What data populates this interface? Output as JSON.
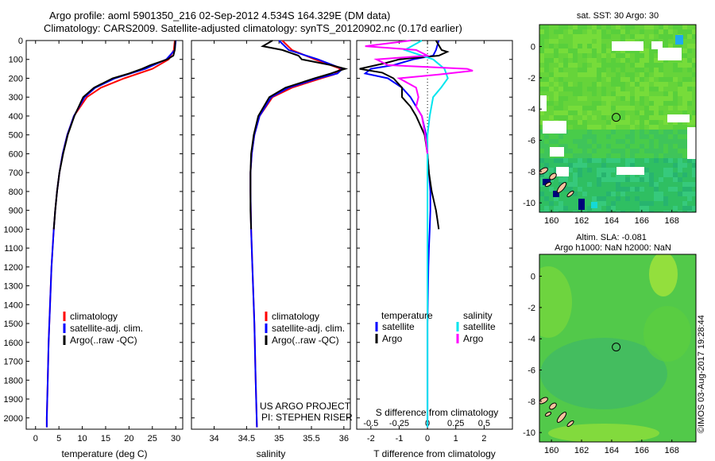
{
  "header": {
    "line1": "Argo profile: aoml 5901350_216 02-Sep-2012 4.534S 164.329E (DM data)",
    "line2": "Climatology: CARS2009. Satellite-adjusted climatology: synTS_20120902.nc (0.17d earlier)"
  },
  "colors": {
    "clim": "#ff0000",
    "sat": "#0000ff",
    "argo": "#000000",
    "sal_sat": "#00e5ee",
    "sal_argo": "#ff00ff"
  },
  "chart_data": [
    {
      "id": "temperature",
      "type": "line",
      "xlabel": "temperature (deg C)",
      "ylabel": "",
      "xlim": [
        -2,
        31.5
      ],
      "ylim": [
        2060,
        0
      ],
      "xticks": [
        0,
        5,
        10,
        15,
        20,
        25,
        30
      ],
      "yticks": [
        0,
        100,
        200,
        300,
        400,
        500,
        600,
        700,
        800,
        900,
        1000,
        1100,
        1200,
        1300,
        1400,
        1500,
        1600,
        1700,
        1800,
        1900,
        2000
      ],
      "legend": [
        "climatology",
        "satellite-adj. clim.",
        "Argo(..raw -QC)"
      ],
      "series": [
        {
          "name": "climatology",
          "color": "clim",
          "depth": [
            0,
            50,
            100,
            150,
            200,
            250,
            300,
            400,
            500,
            600,
            700,
            800,
            900,
            1000,
            1200,
            1400,
            1600,
            1800,
            2000,
            2050
          ],
          "values": [
            29.8,
            29.6,
            28.5,
            25,
            19,
            14,
            11,
            8.2,
            6.8,
            5.8,
            5.1,
            4.6,
            4.2,
            3.9,
            3.4,
            3.1,
            2.8,
            2.6,
            2.4,
            2.4
          ]
        },
        {
          "name": "satellite-adj. clim.",
          "color": "sat",
          "depth": [
            0,
            50,
            100,
            150,
            200,
            250,
            300,
            400,
            500,
            600,
            700,
            800,
            900,
            1000,
            1200,
            1400,
            1600,
            1800,
            2000,
            2050
          ],
          "values": [
            30,
            29.8,
            28,
            23.5,
            17,
            12.8,
            10.5,
            8.2,
            6.8,
            5.8,
            5.1,
            4.6,
            4.2,
            3.9,
            3.4,
            3.1,
            2.8,
            2.6,
            2.4,
            2.4
          ]
        },
        {
          "name": "Argo(..raw -QC)",
          "color": "argo",
          "depth": [
            0,
            50,
            80,
            100,
            130,
            150,
            175,
            200,
            250,
            300,
            400,
            500,
            600,
            700,
            800,
            900,
            1000
          ],
          "values": [
            29.9,
            29.8,
            29.5,
            28.2,
            24.6,
            22.8,
            20,
            16.5,
            12.5,
            10.2,
            8.3,
            6.9,
            5.9,
            5.1,
            4.6,
            4.2,
            3.9
          ]
        }
      ]
    },
    {
      "id": "salinity",
      "type": "line",
      "xlabel": "salinity",
      "ylabel": "",
      "xlim": [
        33.65,
        36.1
      ],
      "ylim": [
        2060,
        0
      ],
      "xticks": [
        34,
        34.5,
        35,
        35.5,
        36
      ],
      "xticklabels": [
        "34",
        "34.5",
        "35",
        "35.5",
        "36"
      ],
      "legend": [
        "climatology",
        "satellite-adj. clim.",
        "Argo(..raw -QC)"
      ],
      "credit1": "US ARGO PROJECT",
      "credit2": "PI: STEPHEN RISER",
      "series": [
        {
          "name": "climatology",
          "color": "clim",
          "depth": [
            0,
            50,
            100,
            150,
            180,
            200,
            250,
            300,
            400,
            500,
            600,
            700,
            800,
            1000,
            1200,
            1500,
            1800,
            2050
          ],
          "values": [
            35.05,
            35.2,
            35.55,
            35.95,
            35.85,
            35.65,
            35.2,
            34.9,
            34.7,
            34.62,
            34.58,
            34.56,
            34.56,
            34.57,
            34.59,
            34.62,
            34.64,
            34.66
          ]
        },
        {
          "name": "satellite-adj. clim.",
          "color": "sat",
          "depth": [
            0,
            50,
            100,
            150,
            175,
            200,
            250,
            300,
            400,
            500,
            600,
            700,
            800,
            1000,
            1200,
            1500,
            1800,
            2050
          ],
          "values": [
            35.0,
            35.15,
            35.6,
            35.98,
            35.9,
            35.6,
            35.15,
            34.88,
            34.7,
            34.62,
            34.58,
            34.56,
            34.56,
            34.57,
            34.59,
            34.62,
            34.64,
            34.66
          ]
        },
        {
          "name": "Argo(..raw -QC)",
          "color": "argo",
          "depth": [
            0,
            30,
            50,
            80,
            100,
            130,
            150,
            160,
            175,
            200,
            250,
            300,
            400,
            500,
            600,
            700,
            800,
            900,
            1000
          ],
          "values": [
            34.9,
            34.75,
            35.05,
            35.3,
            35.35,
            35.8,
            36.02,
            35.92,
            35.8,
            35.55,
            35.1,
            34.85,
            34.68,
            34.61,
            34.57,
            34.56,
            34.56,
            34.56,
            34.57
          ]
        }
      ]
    },
    {
      "id": "difference",
      "type": "line",
      "xlabel": "T difference from climatology",
      "xlabel_top": "S difference from climatology",
      "xlim": [
        -2.5,
        3.0
      ],
      "ylim": [
        2060,
        0
      ],
      "xticks": [
        -2,
        -1,
        0,
        1,
        2
      ],
      "xticklabels": [
        "-2",
        "-1",
        "0",
        "1",
        "2"
      ],
      "sticks": [
        -0.5,
        -0.25,
        0,
        0.25,
        0.5
      ],
      "sticklabels": [
        "-0.5",
        "-0.25",
        "0",
        "0.25",
        "0.5"
      ],
      "legend_t_title": "temperature",
      "legend_s_title": "salinity",
      "legend": [
        "satellite",
        "Argo",
        "satellite",
        "Argo"
      ],
      "series": [
        {
          "name": "T satellite",
          "color": "sat",
          "depth": [
            0,
            50,
            80,
            100,
            130,
            150,
            175,
            200,
            250,
            300,
            400,
            500,
            600,
            700,
            800,
            900,
            1000,
            1100,
            1200,
            1500,
            2050
          ],
          "values": [
            0.4,
            0.3,
            0.2,
            -0.5,
            -1.2,
            -2.0,
            -2.2,
            -1.4,
            -0.9,
            -0.6,
            -0.2,
            -0.05,
            0.0,
            0.05,
            0.1,
            0.1,
            0.08,
            0.05,
            0.03,
            0.0,
            0.0
          ]
        },
        {
          "name": "T Argo",
          "color": "argo",
          "depth": [
            0,
            50,
            60,
            80,
            100,
            120,
            150,
            170,
            200,
            250,
            300,
            350,
            400,
            500,
            600,
            700,
            800,
            900,
            950,
            1000
          ],
          "values": [
            0.3,
            0.5,
            0.7,
            0.4,
            -1.0,
            -1.5,
            -2.4,
            -1.6,
            -1.2,
            -0.9,
            -0.9,
            -0.6,
            -0.4,
            -0.1,
            0.0,
            0.05,
            0.15,
            0.3,
            0.35,
            0.4
          ]
        },
        {
          "name": "S satellite",
          "color": "sal_sat",
          "depth": [
            0,
            50,
            100,
            150,
            200,
            250,
            300,
            400,
            500,
            600,
            800,
            1000,
            1500,
            2050
          ],
          "values": [
            -0.05,
            -0.2,
            0.05,
            0.15,
            0.18,
            0.12,
            0.05,
            0.02,
            0.0,
            0.0,
            0.0,
            0.0,
            0.0,
            0.0
          ]
        },
        {
          "name": "S Argo",
          "color": "sal_argo",
          "depth": [
            0,
            30,
            50,
            80,
            100,
            130,
            150,
            160,
            180,
            200,
            250,
            300,
            350,
            400,
            500,
            600
          ],
          "values": [
            -0.15,
            -0.55,
            -0.1,
            0.0,
            -0.45,
            -0.35,
            0.35,
            0.4,
            0.1,
            -0.25,
            -0.1,
            -0.08,
            -0.1,
            -0.05,
            -0.02,
            0.0
          ]
        }
      ]
    }
  ],
  "maps": [
    {
      "title": "sat. SST: 30 Argo: 30",
      "xticks": [
        160,
        162,
        164,
        166,
        168
      ],
      "yticks": [
        0,
        -2,
        -4,
        -6,
        -8,
        -10
      ],
      "xlim": [
        159.2,
        169.6
      ],
      "ylim": [
        -10.6,
        1.4
      ],
      "marker": {
        "lon": 164.3,
        "lat": -4.53
      }
    },
    {
      "title1": "Altim. SLA: -0.081",
      "title2": "Argo h1000: NaN h2000: NaN",
      "xticks": [
        160,
        162,
        164,
        166,
        168
      ],
      "yticks": [
        0,
        -2,
        -4,
        -6,
        -8,
        -10
      ],
      "xlim": [
        159.2,
        169.6
      ],
      "ylim": [
        -10.6,
        1.4
      ],
      "marker": {
        "lon": 164.3,
        "lat": -4.53
      }
    }
  ],
  "stamp": "©IMOS 03-Aug-2017 19:28:44"
}
